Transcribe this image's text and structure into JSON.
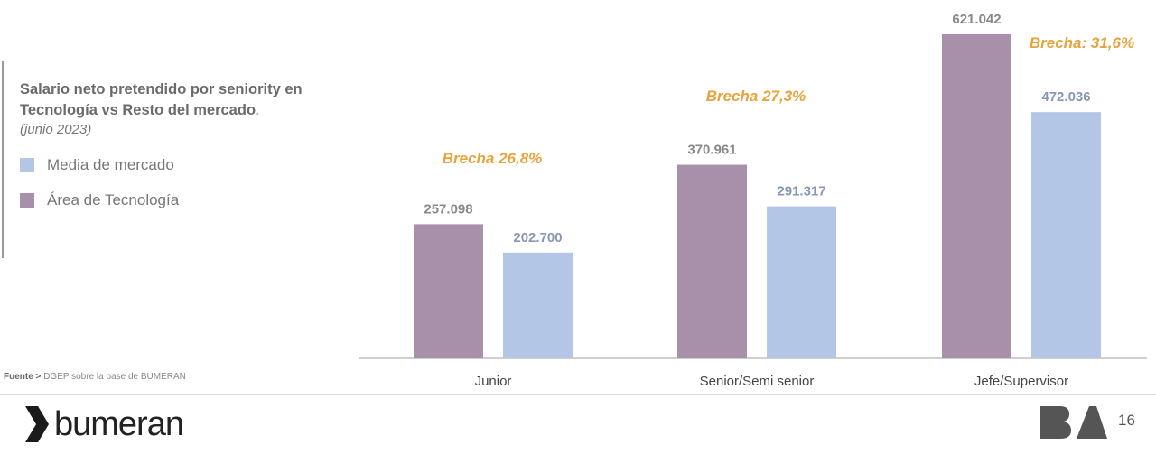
{
  "legend": {
    "title": "Salario neto pretendido por seniority en Tecnología vs Resto del mercado",
    "title_suffix": ".",
    "subtitle": "(junio 2023)"
  },
  "source": {
    "label": "Fuente >",
    "text": "DGEP sobre la base de BUMERAN"
  },
  "footer": {
    "brand": "bumeran",
    "ba_logo": "BA",
    "page_number": "16"
  },
  "colors": {
    "tech": "#a990aa",
    "market": "#b3c6e6",
    "gap": "#e8a33a",
    "tech_label": "#888888",
    "market_label": "#8896b8"
  },
  "chart_data": {
    "type": "bar",
    "title": "Salario neto pretendido por seniority en Tecnología vs Resto del mercado",
    "subtitle": "(junio 2023)",
    "categories": [
      "Junior",
      "Senior/Semi senior",
      "Jefe/Supervisor"
    ],
    "series": [
      {
        "name": "Área de Tecnología",
        "values": [
          257098,
          370961,
          621042
        ],
        "labels": [
          "257.098",
          "370.961",
          "621.042"
        ]
      },
      {
        "name": "Media de mercado",
        "values": [
          202700,
          291317,
          472036
        ],
        "labels": [
          "202.700",
          "291.317",
          "472.036"
        ]
      }
    ],
    "legend_order": [
      "Media de mercado",
      "Área de Tecnología"
    ],
    "annotations": [
      "Brecha 26,8%",
      "Brecha 27,3%",
      "Brecha: 31,6%"
    ],
    "ylim": [
      0,
      621042
    ],
    "grid": false,
    "legend_position": "left"
  }
}
